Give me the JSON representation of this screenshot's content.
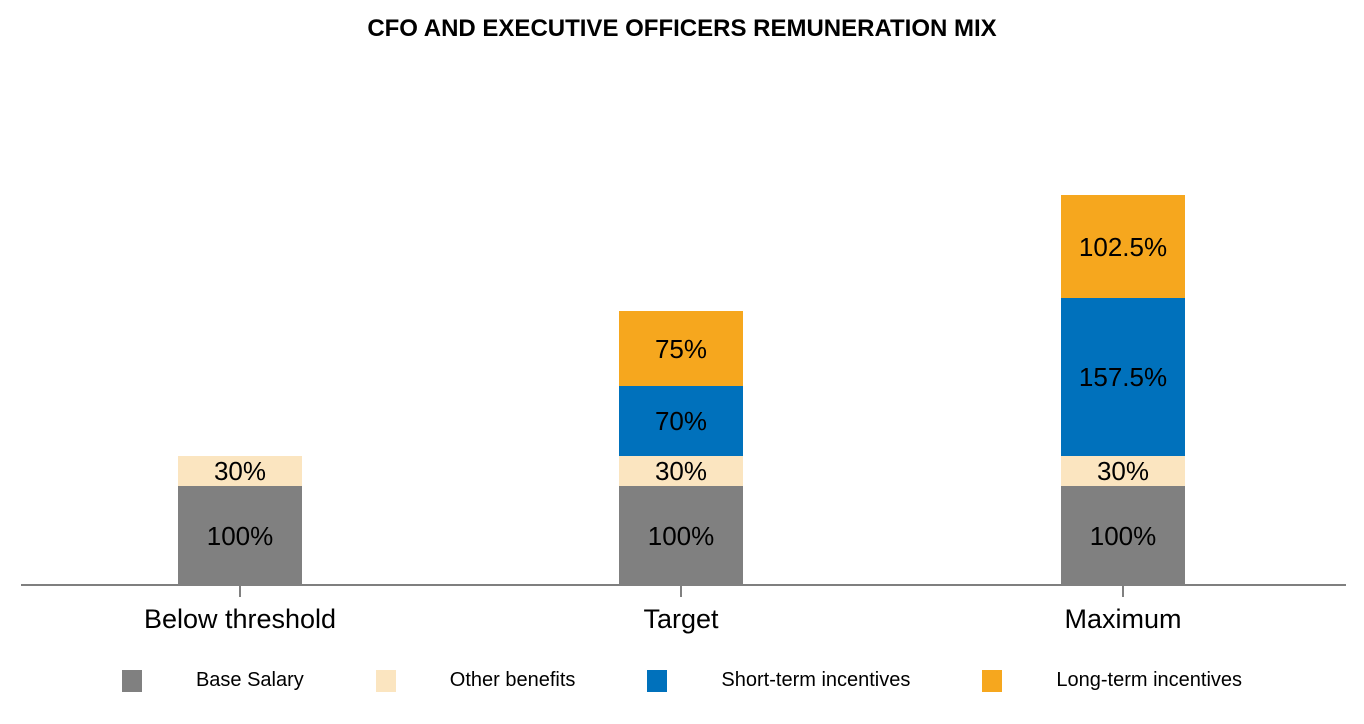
{
  "title": "CFO AND EXECUTIVE OFFICERS REMUNERATION MIX",
  "colors": {
    "base_salary": "#808080",
    "other_benefits": "#FBE5C0",
    "short_term_incentives": "#0071BC",
    "long_term_incentives": "#F6A71E",
    "axis": "#7F7F7F",
    "text": "#000000",
    "background": "#FFFFFF"
  },
  "chart_data": {
    "type": "bar",
    "stacked": true,
    "title": "CFO AND EXECUTIVE OFFICERS REMUNERATION MIX",
    "categories": [
      "Below threshold",
      "Target",
      "Maximum"
    ],
    "series": [
      {
        "name": "Base Salary",
        "color": "#808080",
        "values": [
          100,
          100,
          100
        ],
        "labels": [
          "100%",
          "100%",
          "100%"
        ]
      },
      {
        "name": "Other benefits",
        "color": "#FBE5C0",
        "values": [
          30,
          30,
          30
        ],
        "labels": [
          "30%",
          "30%",
          "30%"
        ]
      },
      {
        "name": "Short-term incentives",
        "color": "#0071BC",
        "values": [
          0,
          70,
          157.5
        ],
        "labels": [
          "",
          "70%",
          "157.5%"
        ]
      },
      {
        "name": "Long-term incentives",
        "color": "#F6A71E",
        "values": [
          0,
          75,
          102.5
        ],
        "labels": [
          "",
          "75%",
          "102.5%"
        ]
      }
    ],
    "value_format": "percent",
    "xlabel": "",
    "ylabel": "",
    "ylim": [
      0,
      390
    ],
    "grid": false,
    "y_axis_visible": false,
    "legend_position": "bottom"
  }
}
